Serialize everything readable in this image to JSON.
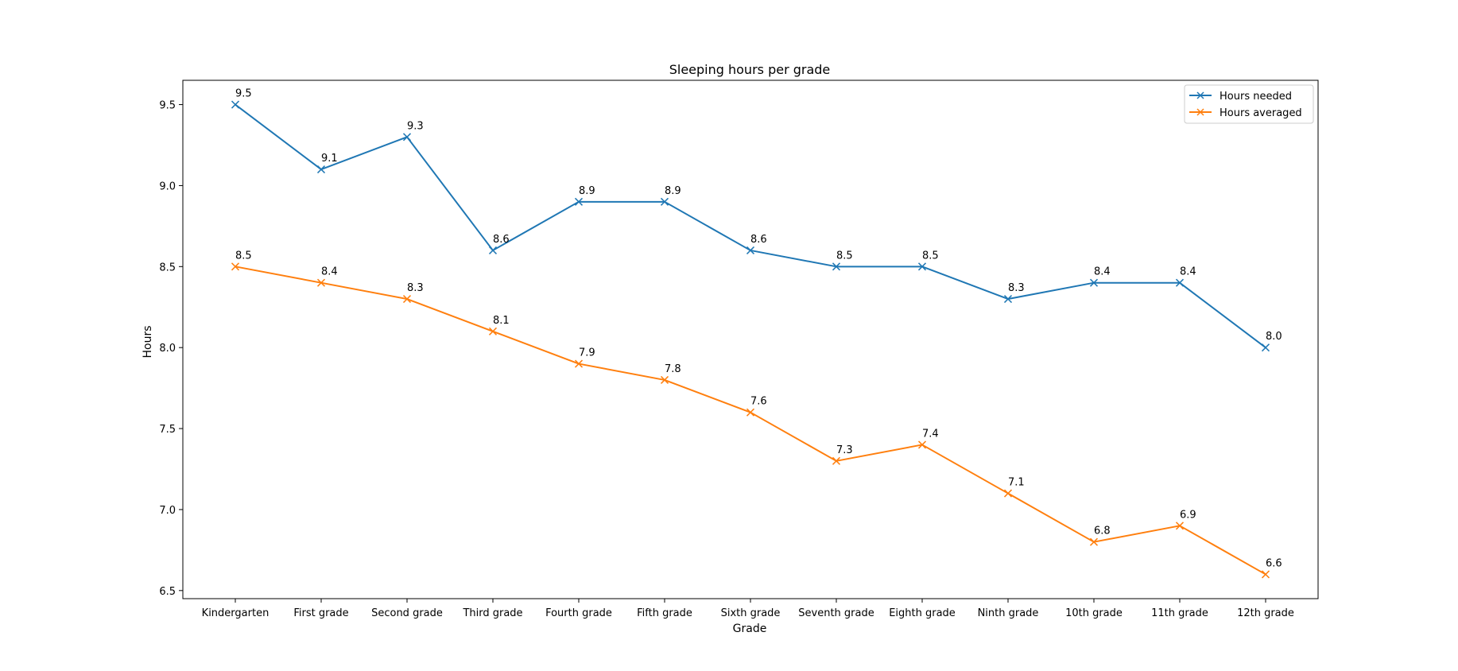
{
  "chart_data": {
    "type": "line",
    "title": "Sleeping hours per grade",
    "xlabel": "Grade",
    "ylabel": "Hours",
    "categories": [
      "Kindergarten",
      "First grade",
      "Second grade",
      "Third grade",
      "Fourth grade",
      "Fifth grade",
      "Sixth grade",
      "Seventh grade",
      "Eighth grade",
      "Ninth grade",
      "10th grade",
      "11th grade",
      "12th grade"
    ],
    "series": [
      {
        "name": "Hours needed",
        "color": "#1f77b4",
        "marker": "x",
        "values": [
          9.5,
          9.1,
          9.3,
          8.6,
          8.9,
          8.9,
          8.6,
          8.5,
          8.5,
          8.3,
          8.4,
          8.4,
          8.0
        ],
        "labels": [
          "9.5",
          "9.1",
          "9.3",
          "8.6",
          "8.9",
          "8.9",
          "8.6",
          "8.5",
          "8.5",
          "8.3",
          "8.4",
          "8.4",
          "8.0"
        ]
      },
      {
        "name": "Hours averaged",
        "color": "#ff7f0e",
        "marker": "x",
        "values": [
          8.5,
          8.4,
          8.3,
          8.1,
          7.9,
          7.8,
          7.6,
          7.3,
          7.4,
          7.1,
          6.8,
          6.9,
          6.6
        ],
        "labels": [
          "8.5",
          "8.4",
          "8.3",
          "8.1",
          "7.9",
          "7.8",
          "7.6",
          "7.3",
          "7.4",
          "7.1",
          "6.8",
          "6.9",
          "6.6"
        ]
      }
    ],
    "ylim": [
      6.45,
      9.65
    ],
    "yticks": [
      6.5,
      7.0,
      7.5,
      8.0,
      8.5,
      9.0,
      9.5
    ],
    "ytick_labels": [
      "6.5",
      "7.0",
      "7.5",
      "8.0",
      "8.5",
      "9.0",
      "9.5"
    ],
    "grid": false,
    "legend_position": "top-right"
  }
}
